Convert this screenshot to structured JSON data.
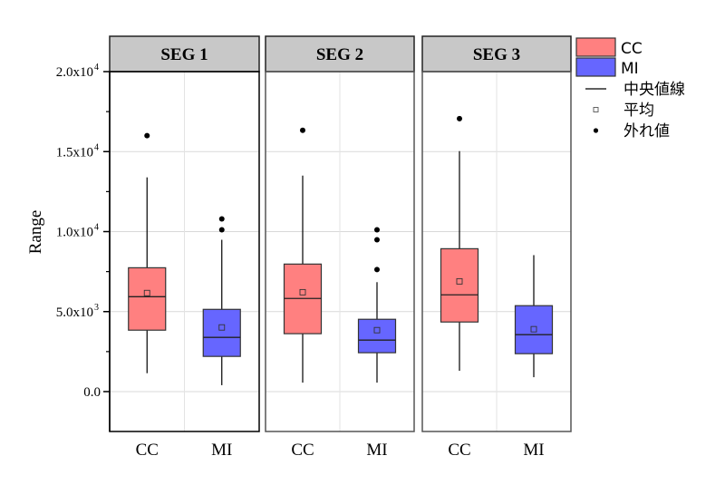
{
  "chart_data": {
    "type": "box",
    "title": "",
    "xlabel": "",
    "ylabel": "Range",
    "ylim": [
      -2500,
      20000
    ],
    "yticks": [
      {
        "value": 0,
        "label": "0.0",
        "exp": ""
      },
      {
        "value": 5000,
        "label": "5.0x10",
        "exp": "3"
      },
      {
        "value": 10000,
        "label": "1.0x10",
        "exp": "4"
      },
      {
        "value": 15000,
        "label": "1.5x10",
        "exp": "4"
      },
      {
        "value": 20000,
        "label": "2.0x10",
        "exp": "4"
      }
    ],
    "minor_ticks": [
      2500,
      7500,
      12500,
      17500
    ],
    "grid": true,
    "legend_position": "right",
    "categories": [
      "CC",
      "MI"
    ],
    "colors": {
      "CC": "#ff8080",
      "MI": "#6666ff"
    },
    "panels": [
      {
        "name": "SEG 1",
        "boxes": [
          {
            "category": "CC",
            "whisker_low": 1150,
            "q1": 3840,
            "median": 5930,
            "q3": 7740,
            "whisker_high": 13390,
            "mean": 6160,
            "outliers": [
              16000
            ]
          },
          {
            "category": "MI",
            "whisker_low": 400,
            "q1": 2200,
            "median": 3390,
            "q3": 5140,
            "whisker_high": 9490,
            "mean": 4010,
            "outliers": [
              10110,
              10790
            ]
          }
        ]
      },
      {
        "name": "SEG 2",
        "boxes": [
          {
            "category": "CC",
            "whisker_low": 560,
            "q1": 3620,
            "median": 5820,
            "q3": 7970,
            "whisker_high": 13500,
            "mean": 6210,
            "outliers": [
              16330
            ]
          },
          {
            "category": "MI",
            "whisker_low": 560,
            "q1": 2430,
            "median": 3220,
            "q3": 4520,
            "whisker_high": 6840,
            "mean": 3840,
            "outliers": [
              7630,
              9490,
              10110
            ]
          }
        ]
      },
      {
        "name": "SEG 3",
        "boxes": [
          {
            "category": "CC",
            "whisker_low": 1300,
            "q1": 4350,
            "median": 6050,
            "q3": 8930,
            "whisker_high": 15030,
            "mean": 6890,
            "outliers": [
              17060
            ]
          },
          {
            "category": "MI",
            "whisker_low": 900,
            "q1": 2370,
            "median": 3560,
            "q3": 5370,
            "whisker_high": 8530,
            "mean": 3900,
            "outliers": []
          }
        ]
      }
    ],
    "legend": [
      {
        "type": "box",
        "label": "CC",
        "color": "#ff8080"
      },
      {
        "type": "box",
        "label": "MI",
        "color": "#6666ff"
      },
      {
        "type": "line",
        "label": "中央値線"
      },
      {
        "type": "mean",
        "label": "平均"
      },
      {
        "type": "outlier",
        "label": "外れ値"
      }
    ]
  }
}
